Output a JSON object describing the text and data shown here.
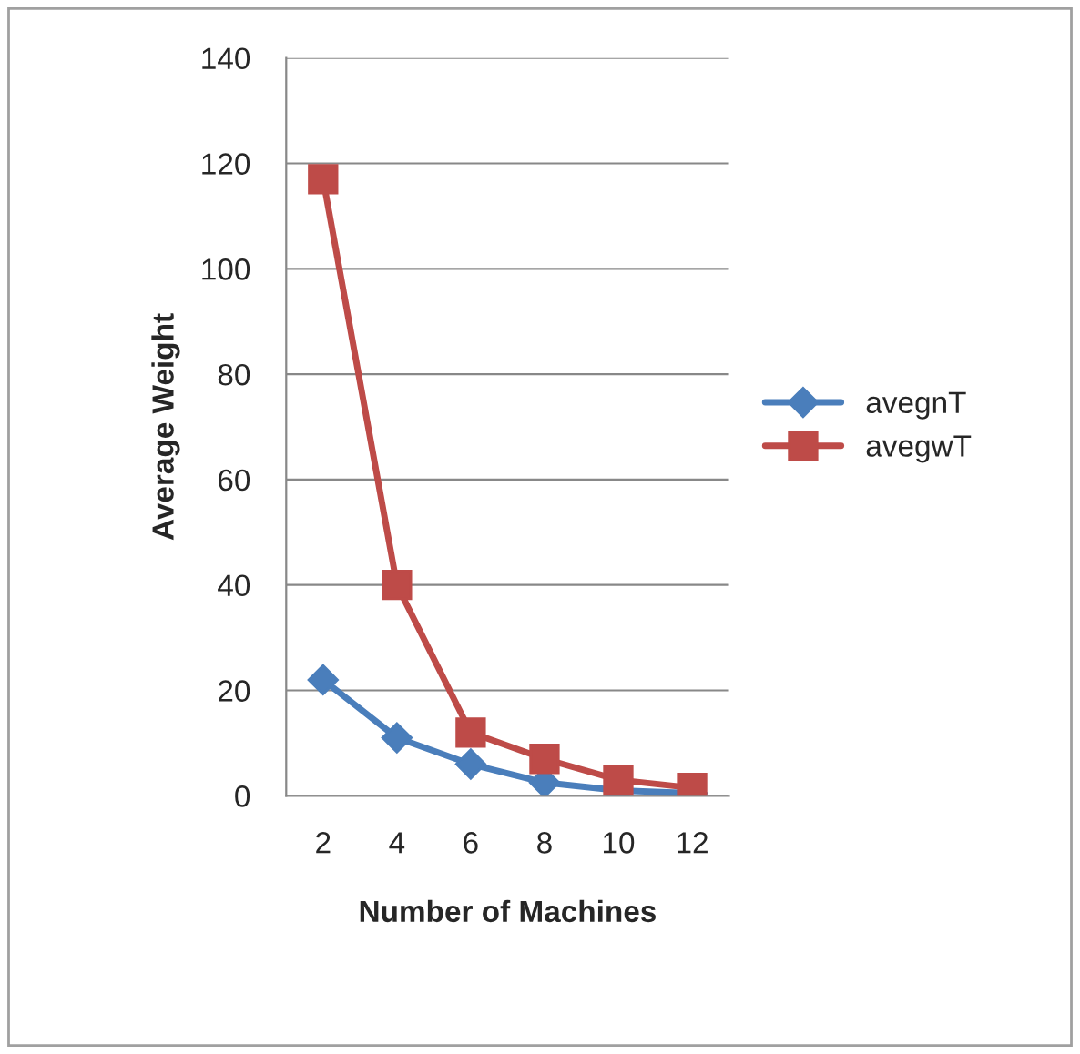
{
  "chart_data": {
    "type": "line",
    "xlabel": "Number of Machines",
    "ylabel": "Average Weight",
    "categories": [
      "2",
      "4",
      "6",
      "8",
      "10",
      "12"
    ],
    "series": [
      {
        "name": "avegnT",
        "color": "#4a7ebb",
        "marker": "diamond",
        "values": [
          22,
          11,
          6,
          2.5,
          1,
          0.5
        ]
      },
      {
        "name": "avegwT",
        "color": "#be4b48",
        "marker": "square",
        "values": [
          117,
          40,
          12,
          7,
          3,
          1.5
        ]
      }
    ],
    "ylim": [
      0,
      140
    ],
    "yticks": [
      0,
      20,
      40,
      60,
      80,
      100,
      120,
      140
    ],
    "grid": "y",
    "legend": "right",
    "line_style": "solid"
  }
}
